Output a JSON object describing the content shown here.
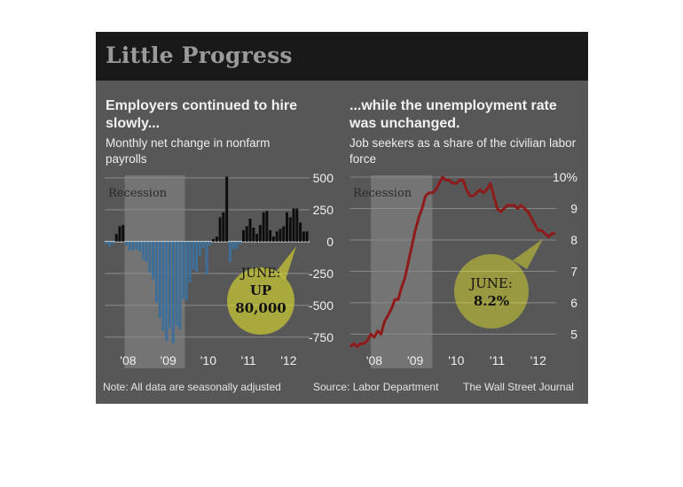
{
  "title": "Little Progress",
  "footer": {
    "note": "Note: All data are seasonally adjusted",
    "source": "Source: Labor Department",
    "credit": "The Wall Street Journal"
  },
  "colors": {
    "frame_bg": "#575757",
    "titlebar_bg": "#191919",
    "payroll_negative_bar": "#3e6f98",
    "payroll_positive_bar": "#0d0d0d",
    "unemployment_line": "#8e1a1a",
    "recession_band": "#747474",
    "callout_highlight": "#ecec2a"
  },
  "chart_data": [
    {
      "type": "bar",
      "title": "Employers continued to hire slowly...",
      "subtitle": "Monthly net change in nonfarm payrolls",
      "x_tick_labels": [
        "'08",
        "'09",
        "'10",
        "'11",
        "'12"
      ],
      "y_tick_labels": [
        "500",
        "250",
        "0",
        "-250",
        "-500",
        "-750"
      ],
      "ylim": [
        -800,
        520
      ],
      "recession_label": "Recession",
      "recession_period": [
        "2007-12",
        "2009-06"
      ],
      "callout": {
        "lines": [
          "JUNE:",
          "UP",
          "80,000"
        ]
      },
      "start_month": "2007-06",
      "values": [
        -20,
        -40,
        -20,
        60,
        120,
        130,
        -30,
        -70,
        -70,
        -60,
        -80,
        -140,
        -160,
        -240,
        -300,
        -480,
        -600,
        -700,
        -780,
        -680,
        -800,
        -660,
        -690,
        -450,
        -460,
        -320,
        -220,
        -240,
        -110,
        -50,
        -260,
        -30,
        20,
        40,
        190,
        230,
        510,
        -160,
        -60,
        -60,
        -20,
        90,
        120,
        180,
        110,
        60,
        130,
        230,
        240,
        90,
        40,
        80,
        100,
        120,
        230,
        190,
        260,
        260,
        150,
        80,
        80
      ]
    },
    {
      "type": "line",
      "title": "...while the unemployment rate was unchanged.",
      "subtitle": "Job seekers as a share of the civilian labor force",
      "x_tick_labels": [
        "'08",
        "'09",
        "'10",
        "'11",
        "'12"
      ],
      "y_tick_labels": [
        "10%",
        "9",
        "8",
        "7",
        "6",
        "5"
      ],
      "ylim": [
        4.7,
        10.0
      ],
      "recession_label": "Recession",
      "recession_period": [
        "2007-12",
        "2009-06"
      ],
      "callout": {
        "lines": [
          "JUNE:",
          "8.2%"
        ]
      },
      "start_month": "2007-06",
      "values": [
        4.6,
        4.7,
        4.6,
        4.7,
        4.7,
        4.8,
        5.0,
        4.9,
        5.1,
        5.0,
        5.4,
        5.6,
        5.8,
        6.1,
        6.1,
        6.5,
        6.8,
        7.3,
        7.8,
        8.3,
        8.7,
        9.0,
        9.4,
        9.5,
        9.5,
        9.6,
        9.8,
        10.0,
        9.9,
        9.9,
        9.8,
        9.8,
        9.9,
        9.9,
        9.6,
        9.4,
        9.4,
        9.5,
        9.6,
        9.5,
        9.6,
        9.8,
        9.4,
        9.0,
        8.9,
        9.0,
        9.1,
        9.1,
        9.1,
        9.0,
        9.1,
        9.0,
        8.9,
        8.7,
        8.5,
        8.3,
        8.3,
        8.2,
        8.1,
        8.2,
        8.2
      ]
    }
  ]
}
